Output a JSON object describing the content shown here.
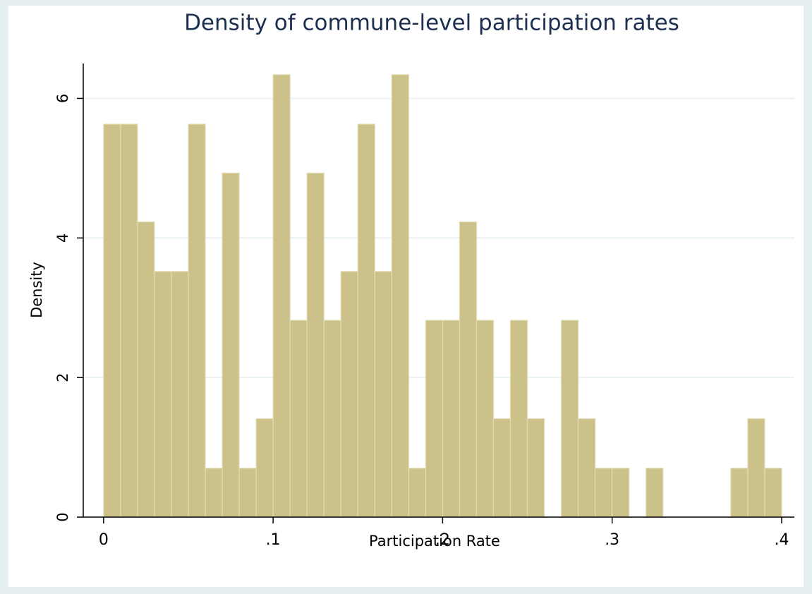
{
  "chart_data": {
    "type": "histogram",
    "title": "Density of commune-level participation rates",
    "xlabel": "Participation Rate",
    "ylabel": "Density",
    "bins": [
      0,
      0.01,
      0.02,
      0.03,
      0.04,
      0.05,
      0.06,
      0.07,
      0.08,
      0.09,
      0.1,
      0.11,
      0.12,
      0.13,
      0.14,
      0.15,
      0.16,
      0.17,
      0.18,
      0.19,
      0.2,
      0.21,
      0.22,
      0.23,
      0.24,
      0.25,
      0.26,
      0.27,
      0.28,
      0.29,
      0.3,
      0.31,
      0.32,
      0.33,
      0.34,
      0.35,
      0.36,
      0.37,
      0.38,
      0.39,
      0.4
    ],
    "values": [
      5.63,
      5.63,
      4.23,
      3.52,
      3.52,
      5.63,
      0.7,
      4.93,
      0.7,
      1.41,
      6.34,
      2.82,
      4.93,
      2.82,
      3.52,
      5.63,
      3.52,
      6.34,
      0.7,
      2.82,
      2.82,
      4.23,
      2.82,
      1.41,
      2.82,
      1.41,
      0,
      2.82,
      1.41,
      0.7,
      0.7,
      0,
      0.7,
      0,
      0,
      0,
      0,
      0.7,
      1.41,
      0.7
    ],
    "color": "#cbc189",
    "xlim": [
      -0.012,
      0.4075
    ],
    "ylim": [
      0,
      6.5
    ],
    "xticks": [
      {
        "value": 0,
        "label": "0"
      },
      {
        "value": 0.1,
        "label": ".1"
      },
      {
        "value": 0.2,
        "label": ".2"
      },
      {
        "value": 0.3,
        "label": ".3"
      },
      {
        "value": 0.4,
        "label": ".4"
      }
    ],
    "yticks": [
      0,
      2,
      4,
      6
    ],
    "grid": true
  }
}
